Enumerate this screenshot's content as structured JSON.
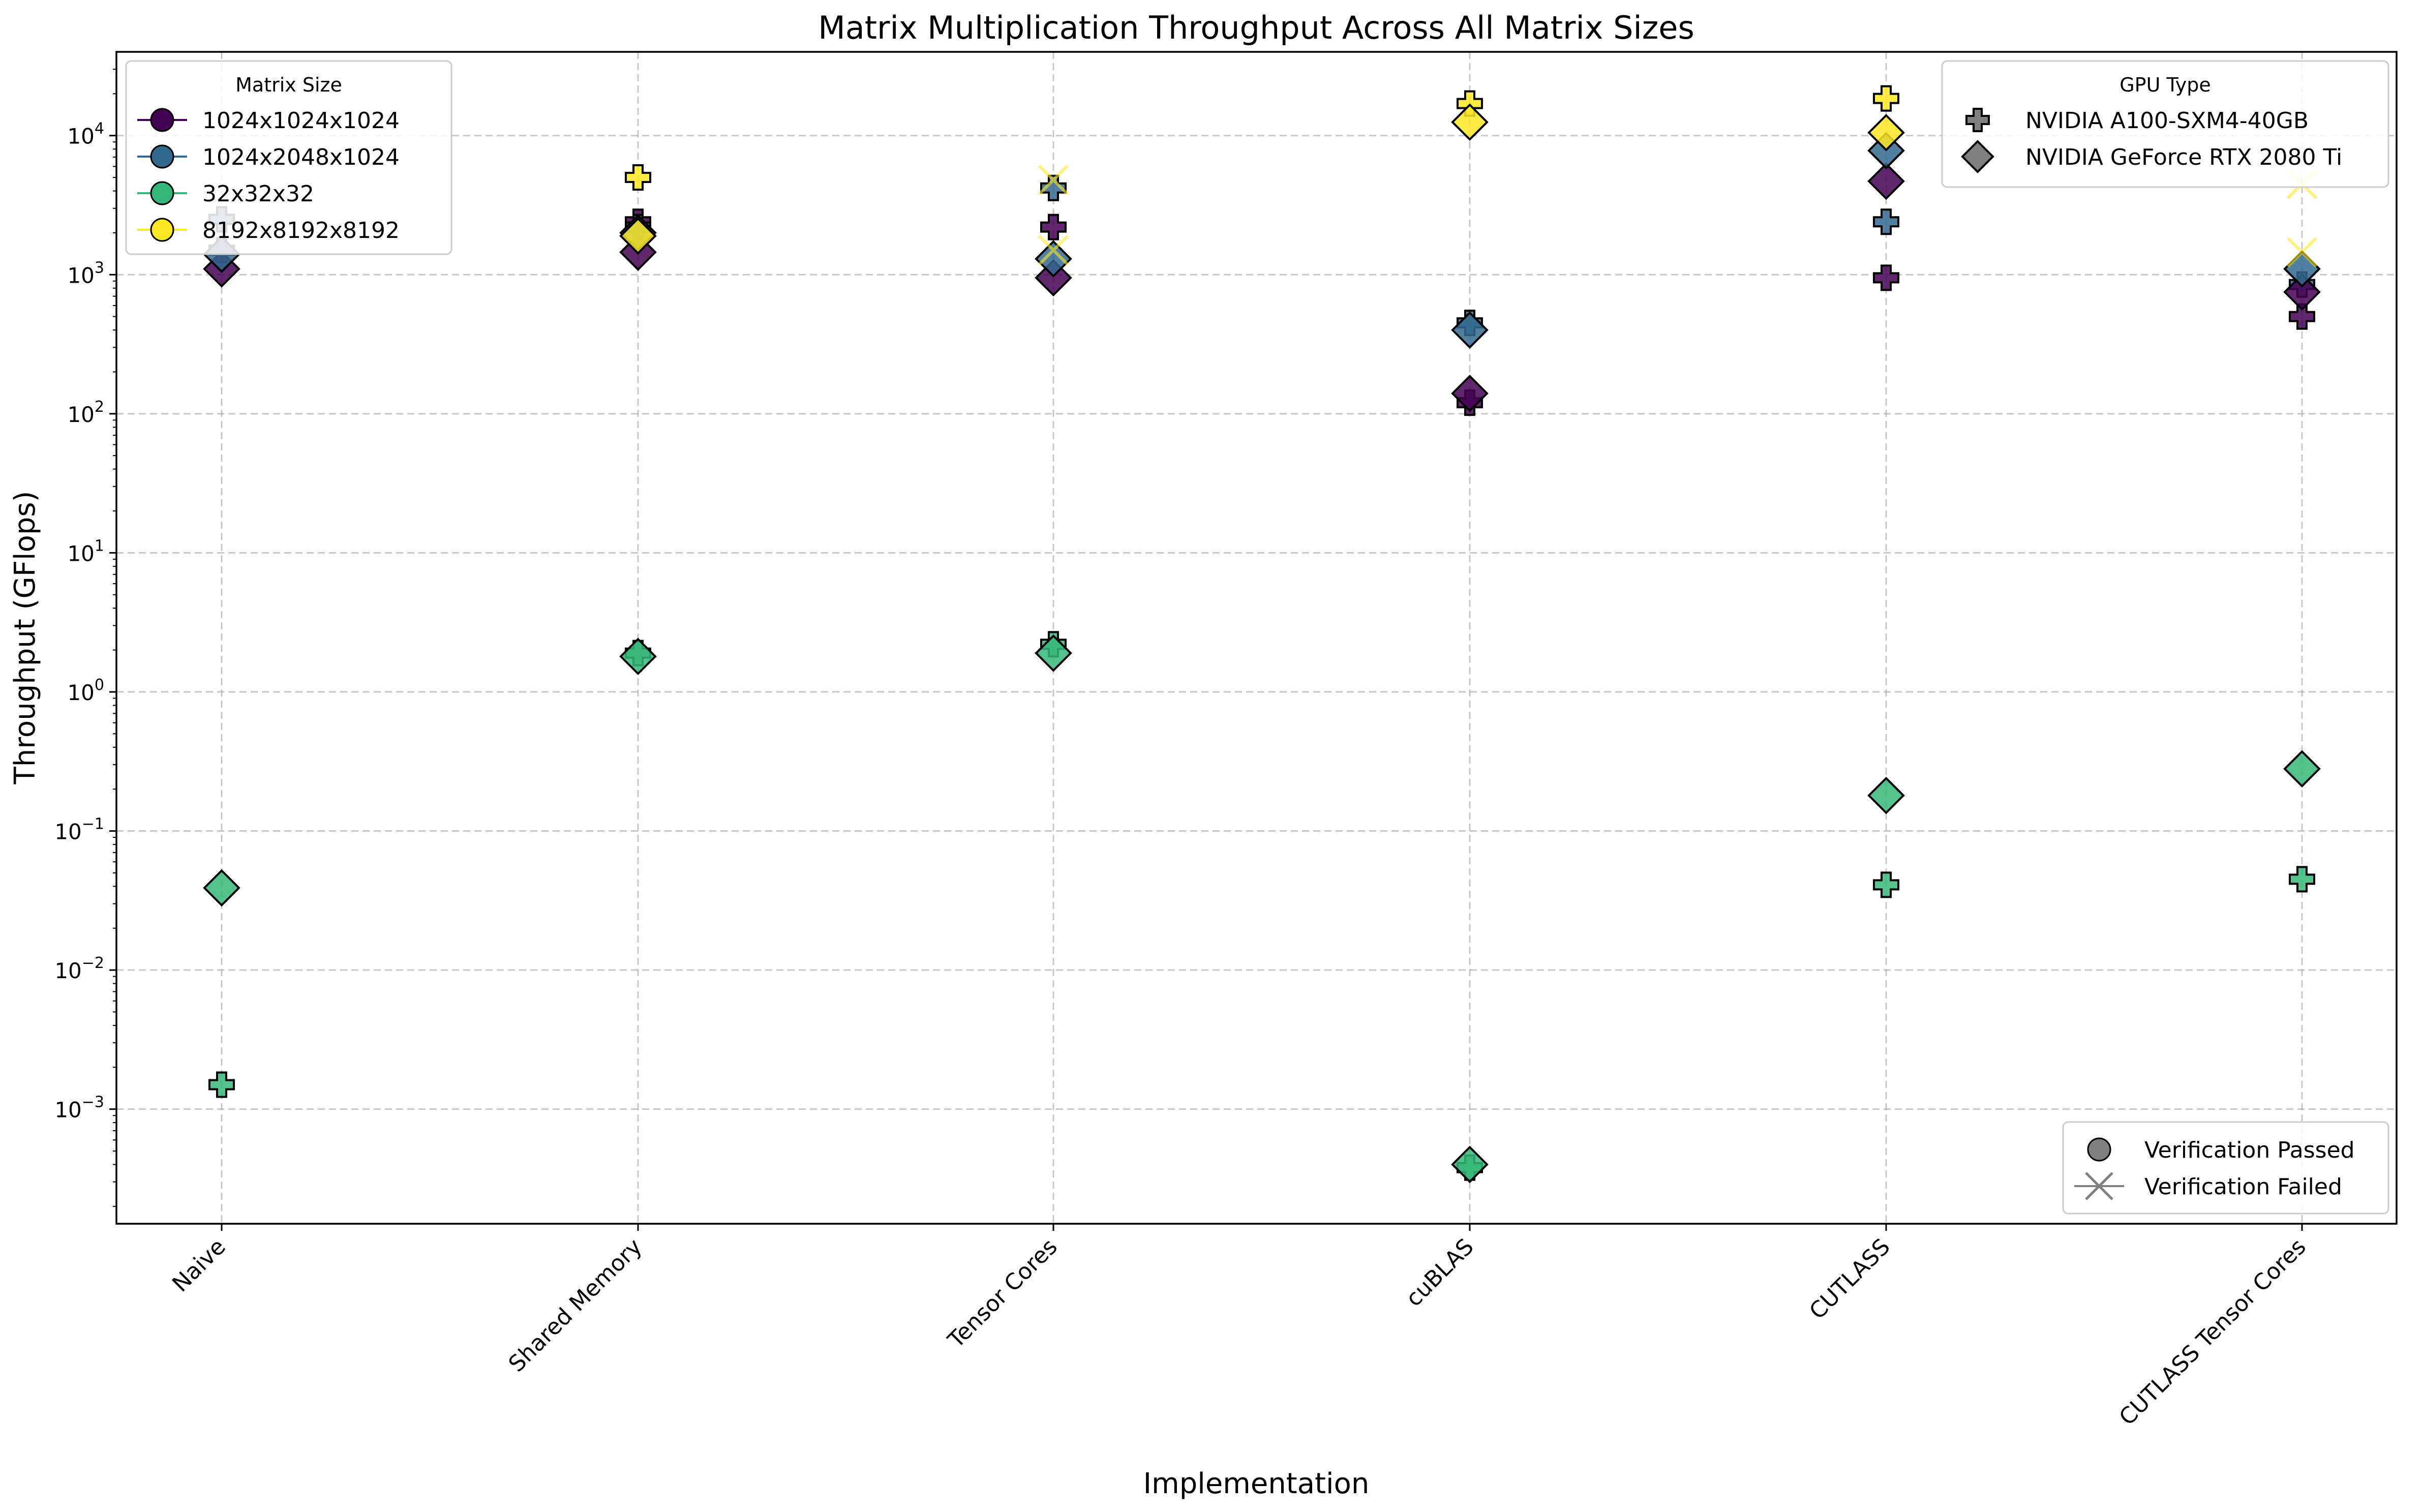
{
  "chart_data": {
    "type": "scatter",
    "title": "Matrix Multiplication Throughput Across All Matrix Sizes",
    "xlabel": "Implementation",
    "ylabel": "Throughput (GFlops)",
    "yscale": "log",
    "ylim": [
      0.00015,
      40000
    ],
    "yticks": [
      {
        "value": 0.001,
        "base": "10",
        "exp": "−3"
      },
      {
        "value": 0.01,
        "base": "10",
        "exp": "−2"
      },
      {
        "value": 0.1,
        "base": "10",
        "exp": "−1"
      },
      {
        "value": 1,
        "base": "10",
        "exp": "0"
      },
      {
        "value": 10,
        "base": "10",
        "exp": "1"
      },
      {
        "value": 100,
        "base": "10",
        "exp": "2"
      },
      {
        "value": 1000,
        "base": "10",
        "exp": "3"
      },
      {
        "value": 10000,
        "base": "10",
        "exp": "4"
      }
    ],
    "grid": true,
    "categories": [
      "Naive",
      "Shared Memory",
      "Tensor Cores",
      "cuBLAS",
      "CUTLASS",
      "CUTLASS Tensor Cores"
    ],
    "size_legend": {
      "title": "Matrix Size",
      "placement": "top-left",
      "entries": [
        {
          "name": "1024x1024x1024",
          "color": "#440154"
        },
        {
          "name": "1024x2048x1024",
          "color": "#31688e"
        },
        {
          "name": "32x32x32",
          "color": "#35b779"
        },
        {
          "name": "8192x8192x8192",
          "color": "#fde725"
        }
      ]
    },
    "gpu_legend": {
      "title": "GPU Type",
      "placement": "top-right",
      "entries": [
        {
          "name": "NVIDIA A100-SXM4-40GB",
          "marker": "plus"
        },
        {
          "name": "NVIDIA GeForce RTX 2080 Ti",
          "marker": "diamond"
        }
      ]
    },
    "verification_legend": {
      "placement": "lower-right",
      "entries": [
        {
          "name": "Verification Passed",
          "marker": "circle"
        },
        {
          "name": "Verification Failed",
          "marker": "x"
        }
      ]
    },
    "points": [
      {
        "impl": "Naive",
        "size": "1024x1024x1024",
        "gpu": "NVIDIA A100-SXM4-40GB",
        "y": 1500,
        "verified": true
      },
      {
        "impl": "Naive",
        "size": "1024x1024x1024",
        "gpu": "NVIDIA GeForce RTX 2080 Ti",
        "y": 1100,
        "verified": true
      },
      {
        "impl": "Naive",
        "size": "1024x2048x1024",
        "gpu": "NVIDIA A100-SXM4-40GB",
        "y": 2500,
        "verified": true
      },
      {
        "impl": "Naive",
        "size": "1024x2048x1024",
        "gpu": "NVIDIA GeForce RTX 2080 Ti",
        "y": 1400,
        "verified": true
      },
      {
        "impl": "Naive",
        "size": "32x32x32",
        "gpu": "NVIDIA A100-SXM4-40GB",
        "y": 0.0015,
        "verified": true
      },
      {
        "impl": "Naive",
        "size": "32x32x32",
        "gpu": "NVIDIA GeForce RTX 2080 Ti",
        "y": 0.039,
        "verified": true
      },
      {
        "impl": "Shared Memory",
        "size": "1024x1024x1024",
        "gpu": "NVIDIA A100-SXM4-40GB",
        "y": 2400,
        "verified": true
      },
      {
        "impl": "Shared Memory",
        "size": "1024x1024x1024",
        "gpu": "NVIDIA GeForce RTX 2080 Ti",
        "y": 1450,
        "verified": true
      },
      {
        "impl": "Shared Memory",
        "size": "1024x2048x1024",
        "gpu": "NVIDIA A100-SXM4-40GB",
        "y": 2200,
        "verified": true
      },
      {
        "impl": "Shared Memory",
        "size": "1024x2048x1024",
        "gpu": "NVIDIA GeForce RTX 2080 Ti",
        "y": 2000,
        "verified": true
      },
      {
        "impl": "Shared Memory",
        "size": "32x32x32",
        "gpu": "NVIDIA A100-SXM4-40GB",
        "y": 1.9,
        "verified": true
      },
      {
        "impl": "Shared Memory",
        "size": "32x32x32",
        "gpu": "NVIDIA GeForce RTX 2080 Ti",
        "y": 1.8,
        "verified": true
      },
      {
        "impl": "Shared Memory",
        "size": "8192x8192x8192",
        "gpu": "NVIDIA A100-SXM4-40GB",
        "y": 5000,
        "verified": true
      },
      {
        "impl": "Shared Memory",
        "size": "8192x8192x8192",
        "gpu": "NVIDIA GeForce RTX 2080 Ti",
        "y": 1900,
        "verified": true
      },
      {
        "impl": "Tensor Cores",
        "size": "1024x1024x1024",
        "gpu": "NVIDIA A100-SXM4-40GB",
        "y": 2200,
        "verified": true
      },
      {
        "impl": "Tensor Cores",
        "size": "1024x1024x1024",
        "gpu": "NVIDIA GeForce RTX 2080 Ti",
        "y": 950,
        "verified": true
      },
      {
        "impl": "Tensor Cores",
        "size": "1024x2048x1024",
        "gpu": "NVIDIA A100-SXM4-40GB",
        "y": 4200,
        "verified": true
      },
      {
        "impl": "Tensor Cores",
        "size": "1024x2048x1024",
        "gpu": "NVIDIA GeForce RTX 2080 Ti",
        "y": 1300,
        "verified": true
      },
      {
        "impl": "Tensor Cores",
        "size": "32x32x32",
        "gpu": "NVIDIA A100-SXM4-40GB",
        "y": 2.2,
        "verified": true
      },
      {
        "impl": "Tensor Cores",
        "size": "32x32x32",
        "gpu": "NVIDIA GeForce RTX 2080 Ti",
        "y": 1.9,
        "verified": true
      },
      {
        "impl": "Tensor Cores",
        "size": "8192x8192x8192",
        "gpu": "NVIDIA A100-SXM4-40GB",
        "y": 4800,
        "verified": false
      },
      {
        "impl": "Tensor Cores",
        "size": "8192x8192x8192",
        "gpu": "NVIDIA GeForce RTX 2080 Ti",
        "y": 1500,
        "verified": false
      },
      {
        "impl": "cuBLAS",
        "size": "1024x1024x1024",
        "gpu": "NVIDIA A100-SXM4-40GB",
        "y": 120,
        "verified": true
      },
      {
        "impl": "cuBLAS",
        "size": "1024x1024x1024",
        "gpu": "NVIDIA GeForce RTX 2080 Ti",
        "y": 140,
        "verified": true
      },
      {
        "impl": "cuBLAS",
        "size": "1024x2048x1024",
        "gpu": "NVIDIA A100-SXM4-40GB",
        "y": 450,
        "verified": true
      },
      {
        "impl": "cuBLAS",
        "size": "1024x2048x1024",
        "gpu": "NVIDIA GeForce RTX 2080 Ti",
        "y": 400,
        "verified": true
      },
      {
        "impl": "cuBLAS",
        "size": "32x32x32",
        "gpu": "NVIDIA A100-SXM4-40GB",
        "y": 0.00038,
        "verified": true
      },
      {
        "impl": "cuBLAS",
        "size": "32x32x32",
        "gpu": "NVIDIA GeForce RTX 2080 Ti",
        "y": 0.0004,
        "verified": true
      },
      {
        "impl": "cuBLAS",
        "size": "8192x8192x8192",
        "gpu": "NVIDIA A100-SXM4-40GB",
        "y": 17000,
        "verified": true
      },
      {
        "impl": "cuBLAS",
        "size": "8192x8192x8192",
        "gpu": "NVIDIA GeForce RTX 2080 Ti",
        "y": 12500,
        "verified": true
      },
      {
        "impl": "CUTLASS",
        "size": "1024x1024x1024",
        "gpu": "NVIDIA A100-SXM4-40GB",
        "y": 950,
        "verified": true
      },
      {
        "impl": "CUTLASS",
        "size": "1024x1024x1024",
        "gpu": "NVIDIA GeForce RTX 2080 Ti",
        "y": 4700,
        "verified": true
      },
      {
        "impl": "CUTLASS",
        "size": "1024x2048x1024",
        "gpu": "NVIDIA A100-SXM4-40GB",
        "y": 2400,
        "verified": true
      },
      {
        "impl": "CUTLASS",
        "size": "1024x2048x1024",
        "gpu": "NVIDIA GeForce RTX 2080 Ti",
        "y": 7800,
        "verified": true
      },
      {
        "impl": "CUTLASS",
        "size": "32x32x32",
        "gpu": "NVIDIA A100-SXM4-40GB",
        "y": 0.041,
        "verified": true
      },
      {
        "impl": "CUTLASS",
        "size": "32x32x32",
        "gpu": "NVIDIA GeForce RTX 2080 Ti",
        "y": 0.18,
        "verified": true
      },
      {
        "impl": "CUTLASS",
        "size": "8192x8192x8192",
        "gpu": "NVIDIA A100-SXM4-40GB",
        "y": 18500,
        "verified": true
      },
      {
        "impl": "CUTLASS",
        "size": "8192x8192x8192",
        "gpu": "NVIDIA GeForce RTX 2080 Ti",
        "y": 10500,
        "verified": true
      },
      {
        "impl": "CUTLASS Tensor Cores",
        "size": "1024x1024x1024",
        "gpu": "NVIDIA A100-SXM4-40GB",
        "y": 500,
        "verified": true
      },
      {
        "impl": "CUTLASS Tensor Cores",
        "size": "1024x1024x1024",
        "gpu": "NVIDIA GeForce RTX 2080 Ti",
        "y": 750,
        "verified": true
      },
      {
        "impl": "CUTLASS Tensor Cores",
        "size": "1024x2048x1024",
        "gpu": "NVIDIA A100-SXM4-40GB",
        "y": 850,
        "verified": true
      },
      {
        "impl": "CUTLASS Tensor Cores",
        "size": "1024x2048x1024",
        "gpu": "NVIDIA GeForce RTX 2080 Ti",
        "y": 1100,
        "verified": true
      },
      {
        "impl": "CUTLASS Tensor Cores",
        "size": "32x32x32",
        "gpu": "NVIDIA A100-SXM4-40GB",
        "y": 0.045,
        "verified": true
      },
      {
        "impl": "CUTLASS Tensor Cores",
        "size": "32x32x32",
        "gpu": "NVIDIA GeForce RTX 2080 Ti",
        "y": 0.28,
        "verified": true
      },
      {
        "impl": "CUTLASS Tensor Cores",
        "size": "8192x8192x8192",
        "gpu": "NVIDIA A100-SXM4-40GB",
        "y": 4500,
        "verified": false
      },
      {
        "impl": "CUTLASS Tensor Cores",
        "size": "8192x8192x8192",
        "gpu": "NVIDIA GeForce RTX 2080 Ti",
        "y": 1450,
        "verified": false
      }
    ]
  }
}
